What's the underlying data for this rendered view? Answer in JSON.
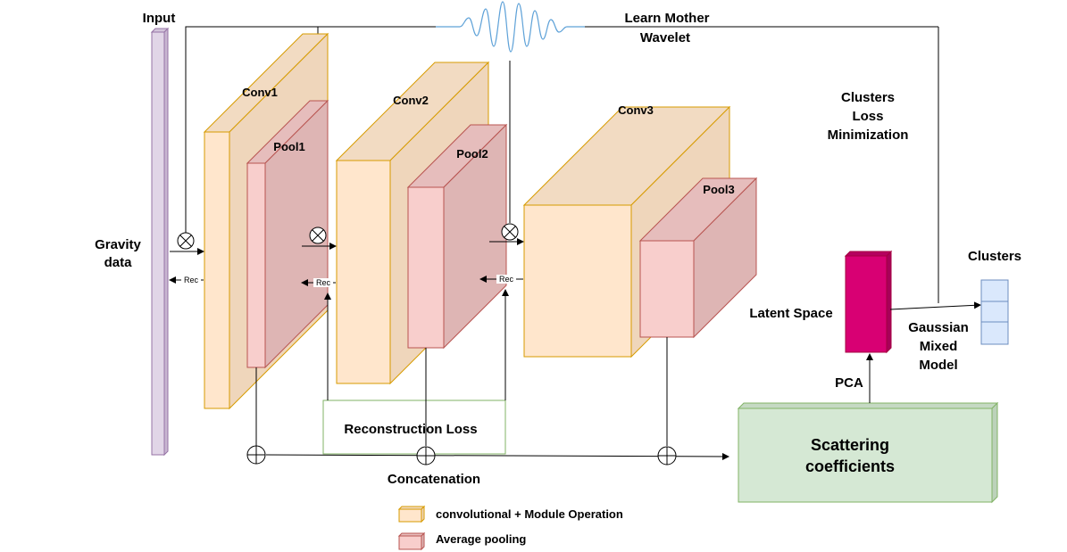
{
  "labels": {
    "input": "Input",
    "gravity_data_line1": "Gravity",
    "gravity_data_line2": "data",
    "learn_wavelet_line1": "Learn Mother",
    "learn_wavelet_line2": "Wavelet",
    "conv1": "Conv1",
    "pool1": "Pool1",
    "conv2": "Conv2",
    "pool2": "Pool2",
    "conv3": "Conv3",
    "pool3": "Pool3",
    "rec": "Rec",
    "clusters_loss_line1": "Clusters",
    "clusters_loss_line2": "Loss",
    "clusters_loss_line3": "Minimization",
    "clusters": "Clusters",
    "latent_space": "Latent Space",
    "gmm_line1": "Gaussian",
    "gmm_line2": "Mixed",
    "gmm_line3": "Model",
    "pca": "PCA",
    "reconstruction_loss": "Reconstruction Loss",
    "concatenation": "Concatenation",
    "scattering_line1": "Scattering",
    "scattering_line2": "coefficients"
  },
  "legend": [
    {
      "label": "convolutional + Module Operation",
      "color": "#ffe6cc",
      "stroke": "#d79b00"
    },
    {
      "label": "Average pooling",
      "color": "#f8cecc",
      "stroke": "#b85450"
    }
  ],
  "colors": {
    "conv_fill": "#ffe6cc",
    "conv_dark": "#f0d9bf",
    "conv_stroke": "#d79b00",
    "pool_fill": "#f8cecc",
    "pool_dark": "#deb5b4",
    "pool_stroke": "#b85450",
    "input_bar": "#e1d5e7",
    "latent": "#d80073",
    "clusters": "#dae8fc",
    "scattering": "#d5e8d4",
    "wavelet": "#5fa2d8"
  }
}
